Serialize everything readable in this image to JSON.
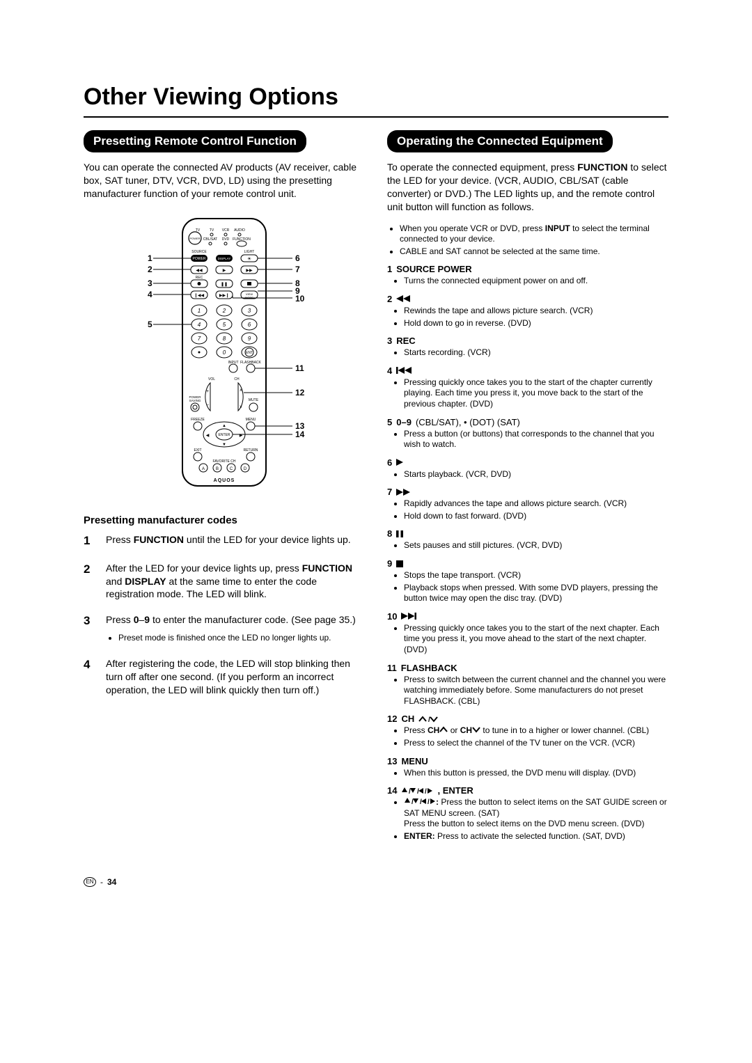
{
  "page_title": "Other Viewing Options",
  "left": {
    "section_title": "Presetting Remote Control Function",
    "intro": "You can operate the connected AV products (AV receiver, cable box, SAT tuner, DTV, VCR, DVD, LD) using the presetting manufacturer function of your remote control unit.",
    "subhead": "Presetting manufacturer codes",
    "remote_labels_left": [
      "1",
      "2",
      "3",
      "4",
      "5"
    ],
    "remote_labels_right": [
      "6",
      "7",
      "8",
      "9",
      "10",
      "11",
      "12",
      "13",
      "14"
    ],
    "remote_brand": "AQUOS",
    "steps": [
      {
        "num": "1",
        "segments": [
          {
            "t": "Press "
          },
          {
            "t": "FUNCTION",
            "b": true
          },
          {
            "t": " until the LED for your device lights up."
          }
        ]
      },
      {
        "num": "2",
        "segments": [
          {
            "t": "After the LED for your device lights up, press "
          },
          {
            "t": "FUNCTION",
            "b": true
          },
          {
            "t": " and "
          },
          {
            "t": "DISPLAY",
            "b": true
          },
          {
            "t": " at the same time to enter the code registration mode. The LED will blink."
          }
        ]
      },
      {
        "num": "3",
        "segments": [
          {
            "t": "Press "
          },
          {
            "t": "0",
            "b": true
          },
          {
            "t": "–"
          },
          {
            "t": "9",
            "b": true
          },
          {
            "t": " to enter the manufacturer code. (See page 35.)"
          }
        ],
        "sub_bullets": [
          "Preset mode is finished once the LED no longer lights up."
        ]
      },
      {
        "num": "4",
        "segments": [
          {
            "t": "After registering the code, the LED will stop blinking then turn off after one second. (If you perform an incorrect operation, the LED will blink quickly then turn off.)"
          }
        ]
      }
    ]
  },
  "right": {
    "section_title": "Operating the Connected Equipment",
    "intro_segments": [
      {
        "t": "To operate the connected equipment, press "
      },
      {
        "t": "FUNCTION",
        "b": true
      },
      {
        "t": " to select the LED for your device. (VCR, AUDIO, CBL/SAT (cable converter) or DVD.) The LED lights up, and the remote control unit button will function as follows."
      }
    ],
    "intro_bullets": [
      [
        {
          "t": "When you operate VCR or DVD, press "
        },
        {
          "t": "INPUT",
          "b": true
        },
        {
          "t": " to select the terminal connected to your device."
        }
      ],
      [
        {
          "t": "CABLE and SAT cannot be selected at the same time."
        }
      ]
    ],
    "functions": [
      {
        "num": "1",
        "label": "SOURCE POWER",
        "bullets": [
          "Turns the connected equipment power on and off."
        ]
      },
      {
        "num": "2",
        "symbol": "rew",
        "bullets": [
          "Rewinds the tape and allows picture search. (VCR)",
          "Hold down to go in reverse. (DVD)"
        ]
      },
      {
        "num": "3",
        "label": "REC",
        "bullets": [
          "Starts recording. (VCR)"
        ]
      },
      {
        "num": "4",
        "symbol": "skipback",
        "bullets": [
          "Pressing quickly once takes you to the start of the chapter currently playing. Each time you press it, you move back to the start of the previous chapter. (DVD)"
        ]
      },
      {
        "num": "5",
        "label": "0–9",
        "extra": " (CBL/SAT), • (DOT) (SAT)",
        "bullets": [
          "Press a button (or buttons) that corresponds to the channel that you wish to watch."
        ]
      },
      {
        "num": "6",
        "symbol": "play",
        "bullets": [
          "Starts playback. (VCR, DVD)"
        ]
      },
      {
        "num": "7",
        "symbol": "ff",
        "bullets": [
          "Rapidly advances the tape and allows picture search. (VCR)",
          "Hold down to fast forward. (DVD)"
        ]
      },
      {
        "num": "8",
        "symbol": "pause",
        "bullets": [
          "Sets pauses and still pictures. (VCR, DVD)"
        ]
      },
      {
        "num": "9",
        "symbol": "stop",
        "bullets": [
          "Stops the tape transport. (VCR)",
          "Playback stops when pressed. With some DVD players, pressing the button twice may open the disc tray. (DVD)"
        ]
      },
      {
        "num": "10",
        "symbol": "skipfwd",
        "bullets": [
          "Pressing quickly once takes you to the start of the next chapter. Each time you press it, you move ahead to the start of the next chapter. (DVD)"
        ]
      },
      {
        "num": "11",
        "label": "FLASHBACK",
        "bullets": [
          "Press to switch between the current channel and the channel you were watching immediately before. Some manufacturers do not preset FLASHBACK. (CBL)"
        ]
      },
      {
        "num": "12",
        "label": "CH",
        "symbol": "chupdown",
        "bullets_rich": [
          [
            {
              "t": "Press "
            },
            {
              "t": "CH",
              "b": true
            },
            {
              "sym": "chup"
            },
            {
              "t": " or "
            },
            {
              "t": "CH",
              "b": true
            },
            {
              "sym": "chdown"
            },
            {
              "t": " to tune in to a higher or lower channel. (CBL)"
            }
          ],
          [
            {
              "t": "Press to select the channel of the TV tuner on the VCR. (VCR)"
            }
          ]
        ]
      },
      {
        "num": "13",
        "label": "MENU",
        "bullets": [
          "When this button is pressed, the DVD menu will display. (DVD)"
        ]
      },
      {
        "num": "14",
        "symbol": "arrows",
        "label_after": ", ENTER",
        "bullets_rich": [
          [
            {
              "sym": "arrows",
              "b": true
            },
            {
              "t": ": ",
              "b": true
            },
            {
              "t": "Press the button to select items on the SAT GUIDE screen or SAT MENU screen. (SAT)"
            },
            {
              "br": true
            },
            {
              "t": "Press the button to select items on the DVD menu screen. (DVD)"
            }
          ],
          [
            {
              "t": "ENTER:",
              "b": true
            },
            {
              "t": " Press to activate the selected function. (SAT, DVD)"
            }
          ]
        ]
      }
    ]
  },
  "footer": {
    "lang": "EN",
    "sep": " - ",
    "page": "34"
  }
}
